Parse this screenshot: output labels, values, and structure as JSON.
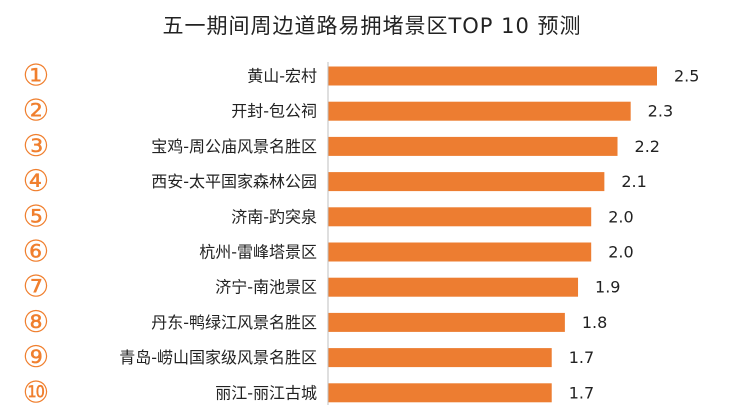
{
  "chart_data": {
    "type": "bar",
    "orientation": "horizontal",
    "title": "五一期间周边道路易拥堵景区TOP 10 预测",
    "rank_markers": [
      "①",
      "②",
      "③",
      "④",
      "⑤",
      "⑥",
      "⑦",
      "⑧",
      "⑨",
      "⑩"
    ],
    "categories": [
      "黄山-宏村",
      "开封-包公祠",
      "宝鸡-周公庙风景名胜区",
      "西安-太平国家森林公园",
      "济南-趵突泉",
      "杭州-雷峰塔景区",
      "济宁-南池景区",
      "丹东-鸭绿江风景名胜区",
      "青岛-崂山国家级风景名胜区",
      "丽江-丽江古城"
    ],
    "values": [
      2.5,
      2.3,
      2.2,
      2.1,
      2.0,
      2.0,
      1.9,
      1.8,
      1.7,
      1.7
    ],
    "value_labels": [
      "2.5",
      "2.3",
      "2.2",
      "2.1",
      "2.0",
      "2.0",
      "1.9",
      "1.8",
      "1.7",
      "1.7"
    ],
    "xlim": [
      0,
      2.5
    ],
    "grid": false,
    "legend": "none"
  },
  "colors": {
    "bar": "#ED7D31",
    "rank_marker": "#F07F2E",
    "text": "#222222"
  }
}
